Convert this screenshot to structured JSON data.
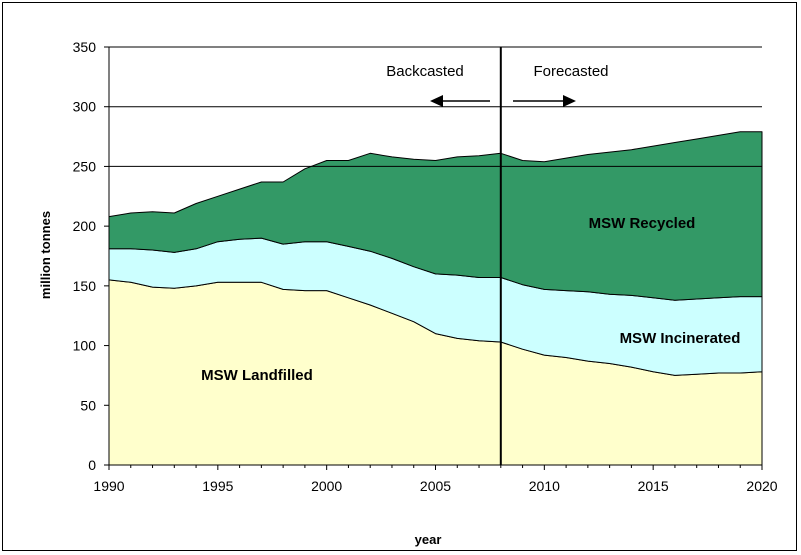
{
  "chart_data": {
    "type": "area",
    "stacked": true,
    "title": "",
    "xlabel": "year",
    "ylabel": "million tonnes",
    "xlim": [
      1990,
      2020
    ],
    "ylim": [
      0,
      350
    ],
    "x_ticks": [
      "1990",
      "1995",
      "2000",
      "2005",
      "2010",
      "2015",
      "2020"
    ],
    "y_ticks": [
      "0",
      "50",
      "100",
      "150",
      "200",
      "250",
      "300",
      "350"
    ],
    "gridlines": [
      250,
      300
    ],
    "divider_year": 2008,
    "x": [
      1990,
      1991,
      1992,
      1993,
      1994,
      1995,
      1996,
      1997,
      1998,
      1999,
      2000,
      2001,
      2002,
      2003,
      2004,
      2005,
      2006,
      2007,
      2008,
      2009,
      2010,
      2011,
      2012,
      2013,
      2014,
      2015,
      2016,
      2017,
      2018,
      2019,
      2020
    ],
    "series": [
      {
        "name": "MSW Landfilled",
        "label": "MSW Landfilled",
        "color": "#ffffcc",
        "values": [
          155,
          153,
          149,
          148,
          150,
          153,
          153,
          153,
          147,
          146,
          146,
          140,
          134,
          127,
          120,
          110,
          106,
          104,
          103,
          97,
          92,
          90,
          87,
          85,
          82,
          78,
          75,
          76,
          77,
          77,
          78
        ]
      },
      {
        "name": "MSW Incinerated",
        "label": "MSW Incinerated",
        "color": "#ccffff",
        "values": [
          26,
          28,
          31,
          30,
          31,
          34,
          36,
          37,
          38,
          41,
          41,
          43,
          45,
          46,
          46,
          50,
          53,
          53,
          54,
          54,
          55,
          56,
          58,
          58,
          60,
          62,
          63,
          63,
          63,
          64,
          63
        ]
      },
      {
        "name": "MSW Recycled",
        "label": "MSW Recycled",
        "color": "#339966",
        "values": [
          27,
          30,
          32,
          33,
          38,
          38,
          42,
          47,
          52,
          61,
          68,
          72,
          82,
          85,
          90,
          95,
          99,
          102,
          104,
          104,
          107,
          111,
          115,
          119,
          122,
          127,
          132,
          134,
          136,
          138,
          138
        ]
      }
    ],
    "annotations": {
      "backcasted": "Backcasted",
      "forecasted": "Forecasted"
    }
  }
}
